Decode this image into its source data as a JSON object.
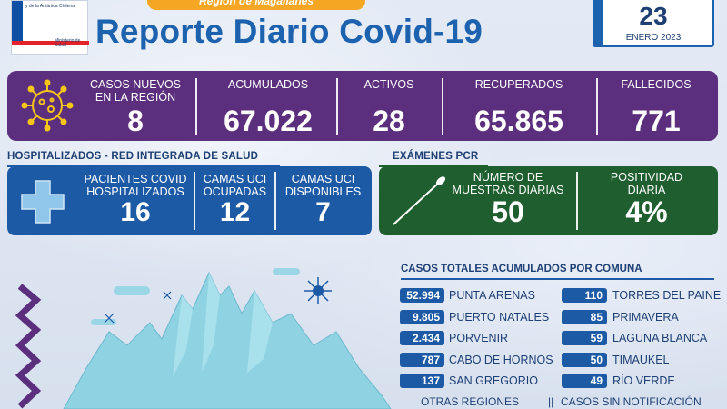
{
  "header": {
    "region_pill": "Región de Magallanes",
    "title": "Reporte Diario Covid-19",
    "logo_top": "y de la Antártica Chilena",
    "logo_ministry": "Ministerio de Salud",
    "date_day": "23",
    "date_month": "ENERO 2023"
  },
  "summary": {
    "stats": [
      {
        "label_line1": "CASOS NUEVOS",
        "label_line2": "EN LA REGIÓN",
        "value": "8"
      },
      {
        "label_line1": "ACUMULADOS",
        "label_line2": "",
        "value": "67.022"
      },
      {
        "label_line1": "ACTIVOS",
        "label_line2": "",
        "value": "28"
      },
      {
        "label_line1": "RECUPERADOS",
        "label_line2": "",
        "value": "65.865"
      },
      {
        "label_line1": "FALLECIDOS",
        "label_line2": "",
        "value": "771"
      }
    ]
  },
  "hospital": {
    "section_title": "HOSPITALIZADOS - RED INTEGRADA DE SALUD",
    "stats": [
      {
        "label_line1": "PACIENTES COVID",
        "label_line2": "HOSPITALIZADOS",
        "value": "16"
      },
      {
        "label_line1": "CAMAS UCI",
        "label_line2": "OCUPADAS",
        "value": "12"
      },
      {
        "label_line1": "CAMAS UCI",
        "label_line2": "DISPONIBLES",
        "value": "7"
      }
    ]
  },
  "pcr": {
    "section_title": "EXÁMENES PCR",
    "stats": [
      {
        "label_line1": "NÚMERO DE",
        "label_line2": "MUESTRAS DIARIAS",
        "value": "50"
      },
      {
        "label_line1": "POSITIVIDAD",
        "label_line2": "DIARIA",
        "value": "4%"
      }
    ]
  },
  "comunas": {
    "title": "CASOS TOTALES ACUMULADOS POR COMUNA",
    "left": [
      {
        "value": "52.994",
        "name": "PUNTA ARENAS"
      },
      {
        "value": "9.805",
        "name": "PUERTO NATALES"
      },
      {
        "value": "2.434",
        "name": "PORVENIR"
      },
      {
        "value": "787",
        "name": "CABO DE HORNOS"
      },
      {
        "value": "137",
        "name": "SAN GREGORIO"
      }
    ],
    "right": [
      {
        "value": "110",
        "name": "TORRES DEL PAINE"
      },
      {
        "value": "85",
        "name": "PRIMAVERA"
      },
      {
        "value": "59",
        "name": "LAGUNA BLANCA"
      },
      {
        "value": "50",
        "name": "TIMAUKEL"
      },
      {
        "value": "49",
        "name": "RÍO VERDE"
      }
    ],
    "footer_left": "OTRAS REGIONES",
    "footer_right": "CASOS SIN NOTIFICACIÓN"
  },
  "colors": {
    "purple": "#5b2f7d",
    "blue": "#1d5aa6",
    "green": "#1f5e2e",
    "title_blue": "#1d62ae",
    "orange": "#f5a623",
    "ice": "#8fd3e3"
  }
}
